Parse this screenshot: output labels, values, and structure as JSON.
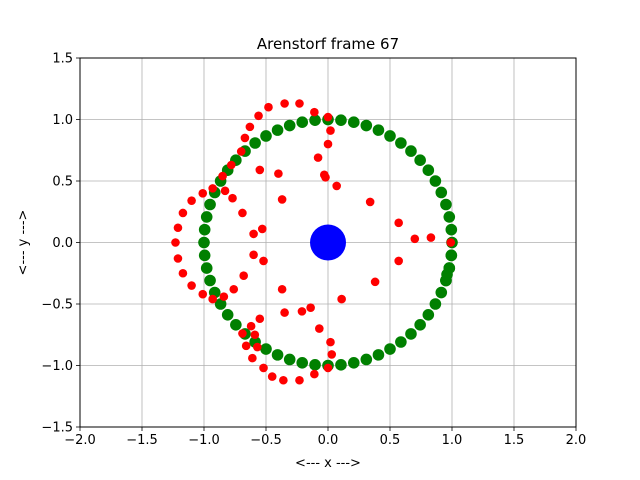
{
  "chart_data": {
    "type": "scatter",
    "title": "Arenstorf frame 67",
    "xlabel": "<---  x  --->",
    "ylabel": "<---  y  --->",
    "xlim": [
      -2.0,
      2.0
    ],
    "ylim": [
      -1.5,
      1.5
    ],
    "xticks": [
      "−2.0",
      "−1.5",
      "−1.0",
      "−0.5",
      "0.0",
      "0.5",
      "1.0",
      "1.5",
      "2.0"
    ],
    "xtick_values": [
      -2.0,
      -1.5,
      -1.0,
      -0.5,
      0.0,
      0.5,
      1.0,
      1.5,
      2.0
    ],
    "yticks": [
      "−1.5",
      "−1.0",
      "−0.5",
      "0.0",
      "0.5",
      "1.0",
      "1.5"
    ],
    "ytick_values": [
      -1.5,
      -1.0,
      -0.5,
      0.0,
      0.5,
      1.0,
      1.5
    ],
    "grid": true,
    "colors": {
      "earth": "#0000ff",
      "moon_orbit": "#008000",
      "satellite": "#ff0000",
      "grid": "#b0b0b0"
    },
    "earth": {
      "x": 0.0,
      "y": 0.0
    },
    "moon_orbit": {
      "radius": 1.0,
      "start_angle_deg": -18,
      "end_angle_deg": 360,
      "step_deg": 6,
      "current": {
        "x": 0.96,
        "y": -0.26
      }
    },
    "satellite_path": [
      [
        0.99,
        0.0
      ],
      [
        0.83,
        0.04
      ],
      [
        0.7,
        0.03
      ],
      [
        0.57,
        0.16
      ],
      [
        0.34,
        0.33
      ],
      [
        0.07,
        0.46
      ],
      [
        -0.02,
        0.53
      ],
      [
        -0.03,
        0.55
      ],
      [
        -0.08,
        0.69
      ],
      [
        0.0,
        0.8
      ],
      [
        0.02,
        0.91
      ],
      [
        0.0,
        1.02
      ],
      [
        -0.11,
        1.06
      ],
      [
        -0.23,
        1.13
      ],
      [
        -0.35,
        1.13
      ],
      [
        -0.48,
        1.1
      ],
      [
        -0.56,
        1.03
      ],
      [
        -0.63,
        0.94
      ],
      [
        -0.67,
        0.85
      ],
      [
        -0.7,
        0.74
      ],
      [
        -0.78,
        0.63
      ],
      [
        -0.85,
        0.54
      ],
      [
        -0.83,
        0.42
      ],
      [
        -0.77,
        0.36
      ],
      [
        -0.69,
        0.24
      ],
      [
        -0.6,
        0.07
      ],
      [
        -0.53,
        0.11
      ],
      [
        -0.55,
        0.59
      ],
      [
        -0.4,
        0.56
      ],
      [
        -0.37,
        0.35
      ],
      [
        -0.93,
        0.44
      ],
      [
        -1.01,
        0.4
      ],
      [
        -1.1,
        0.34
      ],
      [
        -1.17,
        0.24
      ],
      [
        -1.21,
        0.12
      ],
      [
        -1.23,
        0.0
      ],
      [
        -1.21,
        -0.13
      ],
      [
        -1.17,
        -0.25
      ],
      [
        -1.1,
        -0.35
      ],
      [
        -1.01,
        -0.42
      ],
      [
        -0.93,
        -0.46
      ],
      [
        -0.84,
        -0.44
      ],
      [
        -0.76,
        -0.38
      ],
      [
        -0.68,
        -0.27
      ],
      [
        -0.6,
        -0.1
      ],
      [
        -0.52,
        -0.15
      ],
      [
        -0.37,
        -0.38
      ],
      [
        -0.57,
        -0.85
      ],
      [
        -0.59,
        -0.75
      ],
      [
        -0.62,
        -0.68
      ],
      [
        -0.55,
        -0.62
      ],
      [
        -0.35,
        -0.57
      ],
      [
        -0.21,
        -0.56
      ],
      [
        -0.14,
        -0.53
      ],
      [
        -0.07,
        -0.7
      ],
      [
        0.11,
        -0.46
      ],
      [
        0.38,
        -0.32
      ],
      [
        0.57,
        -0.15
      ],
      [
        0.02,
        -0.81
      ],
      [
        0.03,
        -0.91
      ],
      [
        0.0,
        -1.02
      ],
      [
        -0.11,
        -1.07
      ],
      [
        -0.23,
        -1.12
      ],
      [
        -0.36,
        -1.12
      ],
      [
        -0.45,
        -1.09
      ],
      [
        -0.52,
        -1.02
      ],
      [
        -0.61,
        -0.94
      ],
      [
        -0.66,
        -0.84
      ],
      [
        -0.69,
        -0.74
      ]
    ]
  }
}
